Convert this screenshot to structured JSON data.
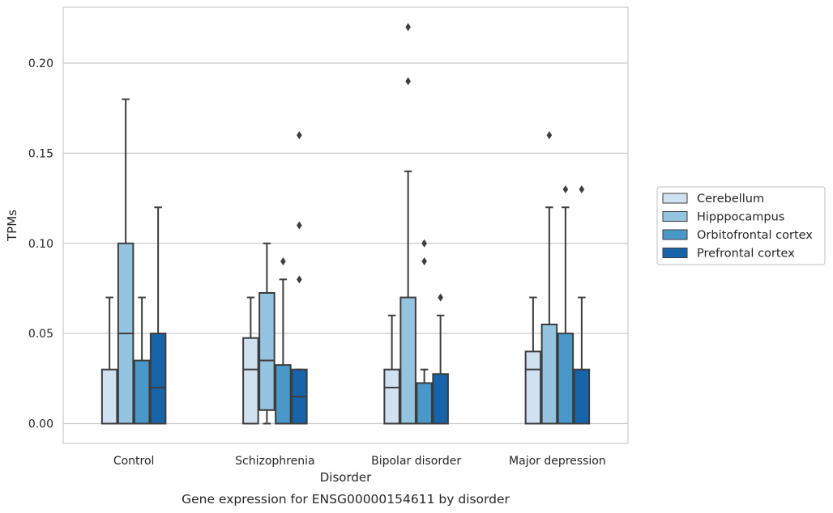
{
  "chart_data": {
    "type": "box",
    "caption": "Gene expression for ENSG00000154611 by disorder",
    "xlabel": "Disorder",
    "ylabel": "TPMs",
    "ylim": [
      -0.011,
      0.231
    ],
    "yticks": [
      0.0,
      0.05,
      0.1,
      0.15,
      0.2
    ],
    "ytick_labels": [
      "0.00",
      "0.05",
      "0.10",
      "0.15",
      "0.20"
    ],
    "grid": "horizontal",
    "legend_position": "right",
    "categories": [
      "Control",
      "Schizophrenia",
      "Bipolar disorder",
      "Major depression"
    ],
    "series": [
      {
        "name": "Cerebellum",
        "color": "#d0e1f2",
        "boxes": [
          {
            "min": 0.0,
            "q1": 0.0,
            "median": 0.0,
            "q3": 0.03,
            "max": 0.07,
            "outliers": []
          },
          {
            "min": 0.0,
            "q1": 0.0,
            "median": 0.03,
            "q3": 0.0475,
            "max": 0.07,
            "outliers": []
          },
          {
            "min": 0.0,
            "q1": 0.0,
            "median": 0.02,
            "q3": 0.03,
            "max": 0.06,
            "outliers": []
          },
          {
            "min": 0.0,
            "q1": 0.0,
            "median": 0.03,
            "q3": 0.04,
            "max": 0.07,
            "outliers": []
          }
        ]
      },
      {
        "name": "Hipppocampus",
        "color": "#94c4df",
        "boxes": [
          {
            "min": 0.0,
            "q1": 0.0,
            "median": 0.05,
            "q3": 0.1,
            "max": 0.18,
            "outliers": []
          },
          {
            "min": 0.0,
            "q1": 0.0075,
            "median": 0.035,
            "q3": 0.0725,
            "max": 0.1,
            "outliers": []
          },
          {
            "min": 0.0,
            "q1": 0.0,
            "median": 0.0,
            "q3": 0.07,
            "max": 0.14,
            "outliers": [
              0.22,
              0.19
            ]
          },
          {
            "min": 0.0,
            "q1": 0.0,
            "median": 0.0,
            "q3": 0.055,
            "max": 0.12,
            "outliers": [
              0.16
            ]
          }
        ]
      },
      {
        "name": "Orbitofrontal cortex",
        "color": "#4a98c9",
        "boxes": [
          {
            "min": 0.0,
            "q1": 0.0,
            "median": 0.0,
            "q3": 0.035,
            "max": 0.07,
            "outliers": []
          },
          {
            "min": 0.0,
            "q1": 0.0,
            "median": 0.0,
            "q3": 0.0325,
            "max": 0.08,
            "outliers": [
              0.09
            ]
          },
          {
            "min": 0.0,
            "q1": 0.0,
            "median": 0.0,
            "q3": 0.0225,
            "max": 0.03,
            "outliers": [
              0.1,
              0.09
            ]
          },
          {
            "min": 0.0,
            "q1": 0.0,
            "median": 0.0,
            "q3": 0.05,
            "max": 0.12,
            "outliers": [
              0.13
            ]
          }
        ]
      },
      {
        "name": "Prefrontal cortex",
        "color": "#1764ab",
        "boxes": [
          {
            "min": 0.0,
            "q1": 0.0,
            "median": 0.02,
            "q3": 0.05,
            "max": 0.12,
            "outliers": []
          },
          {
            "min": 0.0,
            "q1": 0.0,
            "median": 0.015,
            "q3": 0.03,
            "max": 0.03,
            "outliers": [
              0.16,
              0.11,
              0.08
            ]
          },
          {
            "min": 0.0,
            "q1": 0.0,
            "median": 0.0,
            "q3": 0.0275,
            "max": 0.06,
            "outliers": [
              0.07
            ]
          },
          {
            "min": 0.0,
            "q1": 0.0,
            "median": 0.0,
            "q3": 0.03,
            "max": 0.07,
            "outliers": [
              0.13
            ]
          }
        ]
      }
    ]
  }
}
